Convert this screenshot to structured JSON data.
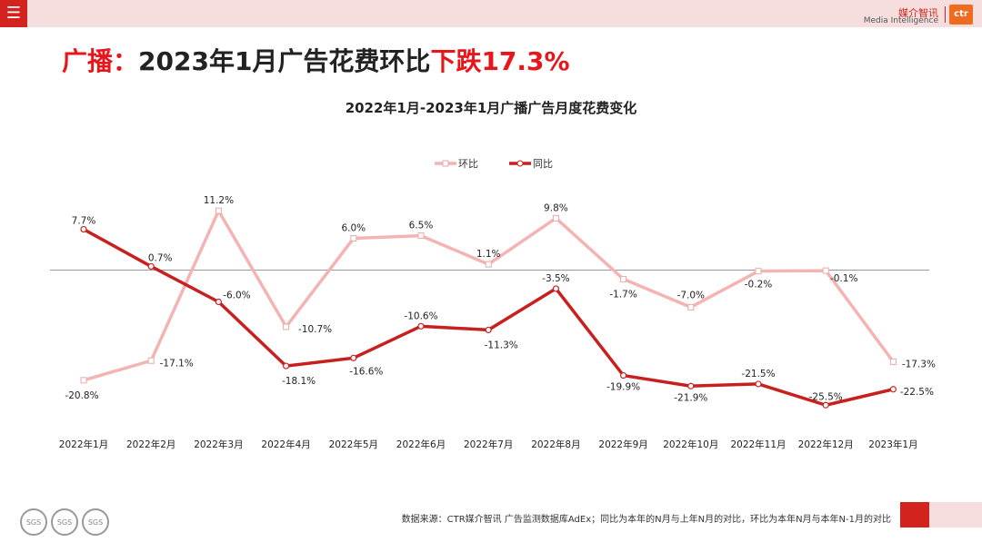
{
  "header": {
    "menu_icon": "menu-icon",
    "logo_cn": "媒介智讯",
    "logo_en": "Media Intelligence",
    "logo_mark": "ctr"
  },
  "headline": {
    "prefix": "广播：",
    "main": "2023年1月广告花费环比",
    "highlight": "下跌17.3%"
  },
  "colors": {
    "mom": "#f4b4b4",
    "yoy": "#c8201f",
    "accent": "#e8151a"
  },
  "chart_data": {
    "type": "line",
    "title": "2022年1月-2023年1月广播广告月度花费变化",
    "legend_position": "top-center",
    "categories": [
      "2022年1月",
      "2022年2月",
      "2022年3月",
      "2022年4月",
      "2022年5月",
      "2022年6月",
      "2022年7月",
      "2022年8月",
      "2022年9月",
      "2022年10月",
      "2022年11月",
      "2022年12月",
      "2023年1月"
    ],
    "ylim": [
      -27,
      15
    ],
    "zero_line": true,
    "series": [
      {
        "name": "环比",
        "values": [
          -20.8,
          -17.1,
          11.2,
          -10.7,
          6.0,
          6.5,
          1.1,
          9.8,
          -1.7,
          -7.0,
          -0.2,
          -0.1,
          -17.3
        ],
        "labels": [
          "-20.8%",
          "-17.1%",
          "11.2%",
          "-10.7%",
          "6.0%",
          "6.5%",
          "1.1%",
          "9.8%",
          "-1.7%",
          "-7.0%",
          "-0.2%",
          "-0.1%",
          "-17.3%"
        ]
      },
      {
        "name": "同比",
        "values": [
          7.7,
          0.7,
          -6.0,
          -18.1,
          -16.6,
          -10.6,
          -11.3,
          -3.5,
          -19.9,
          -21.9,
          -21.5,
          -25.5,
          -22.5
        ],
        "labels": [
          "7.7%",
          "0.7%",
          "-6.0%",
          "-18.1%",
          "-16.6%",
          "-10.6%",
          "-11.3%",
          "-3.5%",
          "-19.9%",
          "-21.9%",
          "-21.5%",
          "-25.5%",
          "-22.5%"
        ]
      }
    ]
  },
  "footer": {
    "source_note": "数据来源：CTR媒介智讯 广告监测数据库AdEx；同比为本年的N月与上年N月的对比，环比为本年N月与本年N-1月的对比",
    "badge_text": "SGS"
  }
}
